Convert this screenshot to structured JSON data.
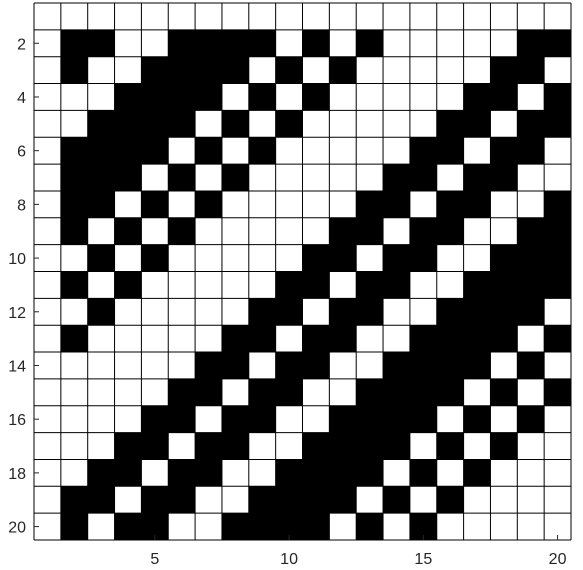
{
  "chart_data": {
    "type": "heatmap",
    "title": "",
    "xlabel": "",
    "ylabel": "",
    "x_range": [
      1,
      20
    ],
    "y_range": [
      1,
      20
    ],
    "x_ticks": [
      5,
      10,
      15,
      20
    ],
    "y_ticks": [
      2,
      4,
      6,
      8,
      10,
      12,
      14,
      16,
      18,
      20
    ],
    "grid": true,
    "colors": {
      "one": "#000000",
      "zero": "#ffffff",
      "grid": "#000000"
    },
    "matrix": [
      [
        0,
        0,
        0,
        0,
        0,
        0,
        0,
        0,
        0,
        0,
        0,
        0,
        0,
        0,
        0,
        0,
        0,
        0,
        0,
        0
      ],
      [
        0,
        1,
        1,
        0,
        0,
        1,
        1,
        1,
        1,
        0,
        1,
        0,
        1,
        0,
        0,
        0,
        0,
        0,
        1,
        1
      ],
      [
        0,
        1,
        0,
        0,
        1,
        1,
        1,
        1,
        0,
        1,
        0,
        1,
        0,
        0,
        0,
        0,
        0,
        1,
        1,
        0
      ],
      [
        0,
        0,
        0,
        1,
        1,
        1,
        1,
        0,
        1,
        0,
        1,
        0,
        0,
        0,
        0,
        0,
        1,
        1,
        0,
        1
      ],
      [
        0,
        0,
        1,
        1,
        1,
        1,
        0,
        1,
        0,
        1,
        0,
        0,
        0,
        0,
        0,
        1,
        1,
        0,
        1,
        1
      ],
      [
        0,
        1,
        1,
        1,
        1,
        0,
        1,
        0,
        1,
        0,
        0,
        0,
        0,
        0,
        1,
        1,
        0,
        1,
        1,
        0
      ],
      [
        0,
        1,
        1,
        1,
        0,
        1,
        0,
        1,
        0,
        0,
        0,
        0,
        0,
        1,
        1,
        0,
        1,
        1,
        0,
        0
      ],
      [
        0,
        1,
        1,
        0,
        1,
        0,
        1,
        0,
        0,
        0,
        0,
        0,
        1,
        1,
        0,
        1,
        1,
        0,
        0,
        1
      ],
      [
        0,
        1,
        0,
        1,
        0,
        1,
        0,
        0,
        0,
        0,
        0,
        1,
        1,
        0,
        1,
        1,
        0,
        0,
        1,
        1
      ],
      [
        0,
        0,
        1,
        0,
        1,
        0,
        0,
        0,
        0,
        0,
        1,
        1,
        0,
        1,
        1,
        0,
        0,
        1,
        1,
        1
      ],
      [
        0,
        1,
        0,
        1,
        0,
        0,
        0,
        0,
        0,
        1,
        1,
        0,
        1,
        1,
        0,
        0,
        1,
        1,
        1,
        1
      ],
      [
        0,
        0,
        1,
        0,
        0,
        0,
        0,
        0,
        1,
        1,
        0,
        1,
        1,
        0,
        0,
        1,
        1,
        1,
        1,
        0
      ],
      [
        0,
        1,
        0,
        0,
        0,
        0,
        0,
        1,
        1,
        0,
        1,
        1,
        0,
        0,
        1,
        1,
        1,
        1,
        0,
        1
      ],
      [
        0,
        0,
        0,
        0,
        0,
        0,
        1,
        1,
        0,
        1,
        1,
        0,
        0,
        1,
        1,
        1,
        1,
        0,
        1,
        0
      ],
      [
        0,
        0,
        0,
        0,
        0,
        1,
        1,
        0,
        1,
        1,
        0,
        0,
        1,
        1,
        1,
        1,
        0,
        1,
        0,
        1
      ],
      [
        0,
        0,
        0,
        0,
        1,
        1,
        0,
        1,
        1,
        0,
        0,
        1,
        1,
        1,
        1,
        0,
        1,
        0,
        1,
        0
      ],
      [
        0,
        0,
        0,
        1,
        1,
        0,
        1,
        1,
        0,
        0,
        1,
        1,
        1,
        1,
        0,
        1,
        0,
        1,
        0,
        0
      ],
      [
        0,
        0,
        1,
        1,
        0,
        1,
        1,
        0,
        0,
        1,
        1,
        1,
        1,
        0,
        1,
        0,
        1,
        0,
        0,
        0
      ],
      [
        0,
        1,
        1,
        0,
        1,
        1,
        0,
        0,
        1,
        1,
        1,
        1,
        0,
        1,
        0,
        1,
        0,
        0,
        0,
        0
      ],
      [
        0,
        1,
        0,
        1,
        1,
        0,
        0,
        1,
        1,
        1,
        1,
        0,
        1,
        0,
        1,
        0,
        0,
        0,
        0,
        0
      ]
    ]
  }
}
